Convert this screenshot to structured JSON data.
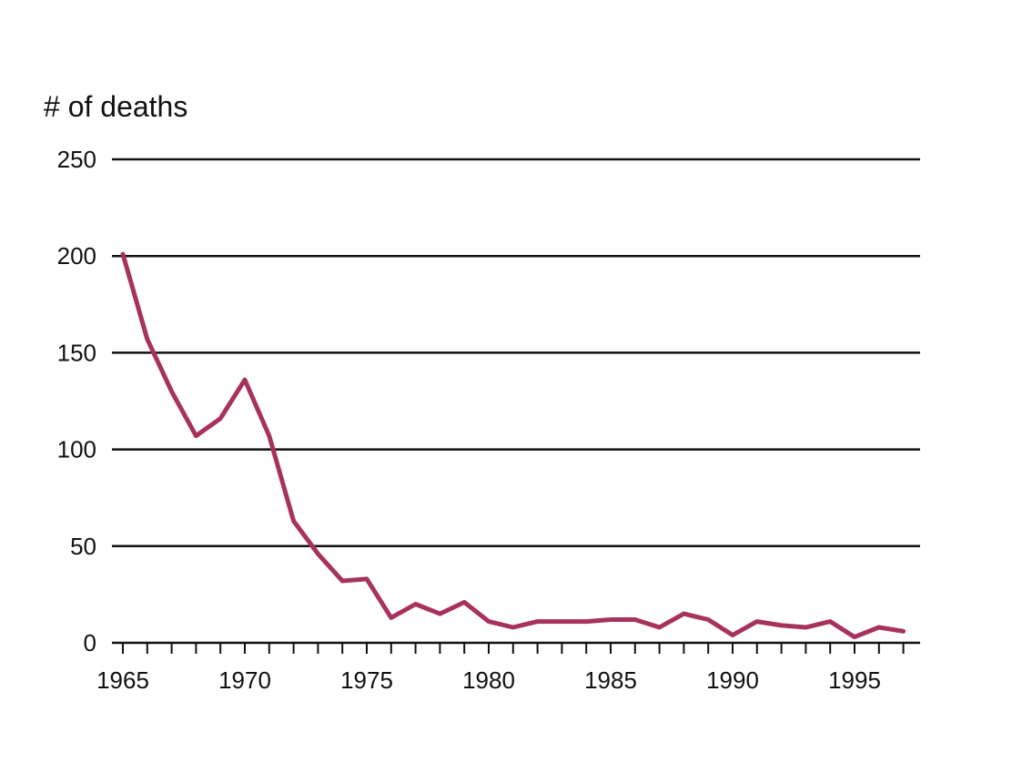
{
  "chart_data": {
    "type": "line",
    "title": "",
    "xlabel": "",
    "ylabel": "# of deaths",
    "x": [
      1965,
      1966,
      1967,
      1968,
      1969,
      1970,
      1971,
      1972,
      1973,
      1974,
      1975,
      1976,
      1977,
      1978,
      1979,
      1980,
      1981,
      1982,
      1983,
      1984,
      1985,
      1986,
      1987,
      1988,
      1989,
      1990,
      1991,
      1992,
      1993,
      1994,
      1995,
      1996,
      1997
    ],
    "series": [
      {
        "values": [
          201,
          157,
          130,
          107,
          116,
          136,
          107,
          63,
          46,
          32,
          33,
          13,
          20,
          15,
          21,
          11,
          8,
          11,
          11,
          11,
          12,
          12,
          8,
          15,
          12,
          4,
          11,
          9,
          8,
          11,
          3,
          8,
          6
        ],
        "color": "#a8325e"
      }
    ],
    "xlim": [
      1965,
      1998
    ],
    "ylim": [
      0,
      250
    ],
    "x_tick_labels": [
      "1965",
      "1970",
      "1975",
      "1980",
      "1985",
      "1990",
      "1995"
    ],
    "y_tick_labels": [
      "0",
      "50",
      "100",
      "150",
      "200",
      "250"
    ],
    "grid": "horizontal",
    "legend": "none"
  }
}
